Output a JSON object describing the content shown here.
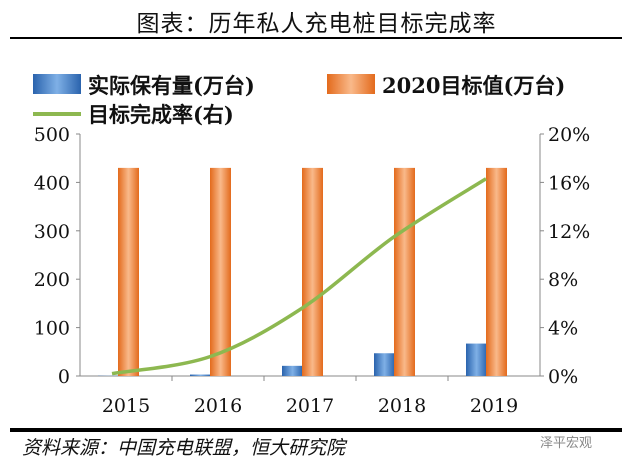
{
  "title": "图表：历年私人充电桩目标完成率",
  "source": "资料来源：中国充电联盟，恒大研究院",
  "watermark": "泽平宏观",
  "colors": {
    "actual": "#3a78c4",
    "target": "#ee7d31",
    "rate": "#8db850"
  },
  "chart_data": {
    "type": "bar+line",
    "categories": [
      "2015",
      "2016",
      "2017",
      "2018",
      "2019"
    ],
    "series": [
      {
        "name": "实际保有量(万台)",
        "type": "bar",
        "axis": "left",
        "values": [
          0.5,
          3,
          21,
          47,
          67
        ]
      },
      {
        "name": "2020目标值(万台)",
        "type": "bar",
        "axis": "left",
        "values": [
          430,
          430,
          430,
          430,
          430
        ]
      },
      {
        "name": "目标完成率(右)",
        "type": "line",
        "axis": "right",
        "values": [
          0.2,
          1.6,
          5.6,
          11.5,
          16.3
        ]
      }
    ],
    "ylim": [
      0,
      500
    ],
    "yticks": [
      "0",
      "100",
      "200",
      "300",
      "400",
      "500"
    ],
    "y2lim": [
      0,
      20
    ],
    "y2ticks": [
      "0%",
      "4%",
      "8%",
      "12%",
      "16%",
      "20%"
    ],
    "legend": "top",
    "grid": false
  }
}
